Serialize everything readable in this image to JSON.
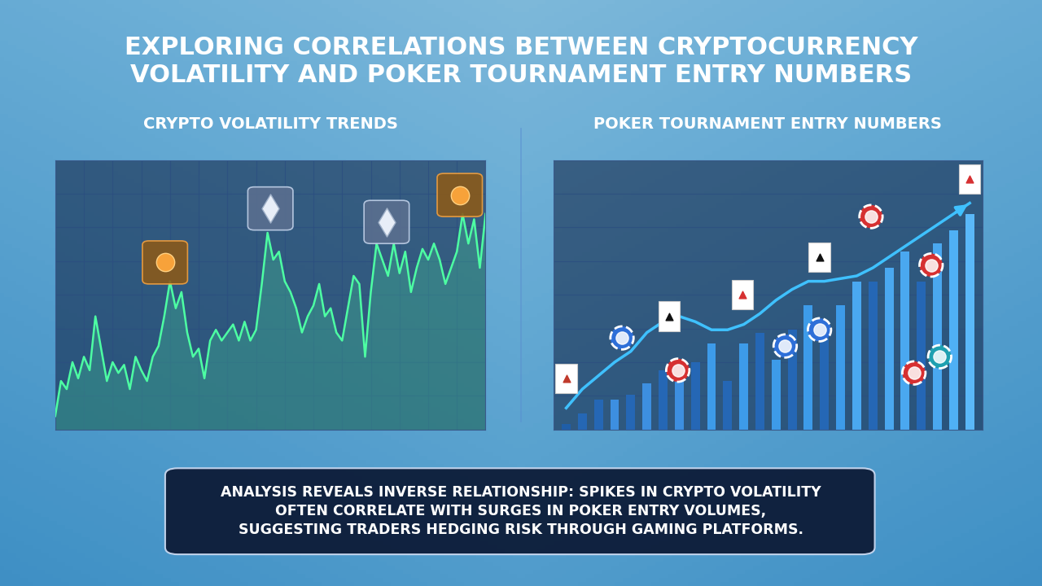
{
  "title": "EXPLORING CORRELATIONS BETWEEN CRYPTOCURRENCY\nVOLATILITY AND POKER TOURNAMENT ENTRY NUMBERS",
  "caption": "ANALYSIS REVEALS INVERSE RELATIONSHIP: SPIKES IN CRYPTO VOLATILITY\nOFTEN CORRELATE WITH SURGES IN POKER ENTRY VOLUMES,\nSUGGESTING TRADERS HEDGING RISK THROUGH GAMING PLATFORMS.",
  "chart_data": [
    {
      "type": "line",
      "title": "CRYPTO VOLATILITY TRENDS",
      "x": [
        0,
        1,
        2,
        3,
        4,
        5,
        6,
        7,
        8,
        9,
        10,
        11,
        12,
        13,
        14,
        15,
        16,
        17,
        18,
        19,
        20,
        21,
        22,
        23,
        24,
        25,
        26,
        27,
        28,
        29,
        30,
        31,
        32,
        33,
        34,
        35,
        36,
        37,
        38,
        39,
        40,
        41,
        42,
        43,
        44,
        45,
        46,
        47,
        48,
        49,
        50,
        51,
        52,
        53,
        54,
        55,
        56,
        57,
        58,
        59,
        60,
        61,
        62,
        63,
        64,
        65,
        66,
        67,
        68,
        69,
        70,
        71,
        72,
        73,
        74,
        75
      ],
      "values": [
        5,
        18,
        15,
        25,
        19,
        27,
        22,
        42,
        30,
        18,
        25,
        21,
        24,
        15,
        27,
        22,
        18,
        27,
        31,
        42,
        55,
        45,
        51,
        36,
        27,
        30,
        19,
        33,
        37,
        33,
        36,
        39,
        33,
        40,
        33,
        37,
        54,
        73,
        63,
        66,
        55,
        51,
        45,
        36,
        42,
        46,
        54,
        42,
        45,
        36,
        33,
        45,
        57,
        54,
        27,
        51,
        69,
        63,
        57,
        69,
        58,
        66,
        51,
        60,
        67,
        63,
        69,
        63,
        54,
        60,
        66,
        80,
        69,
        78,
        60,
        80
      ],
      "color": "#4dffa3",
      "xlim": [
        0,
        75
      ],
      "xticks": [
        0,
        5,
        10,
        15,
        20,
        25,
        30,
        35,
        40,
        45,
        50,
        55,
        60,
        65,
        70,
        75
      ],
      "ylim": [
        0,
        100
      ],
      "yticks": [
        0,
        12.5,
        25,
        37.5,
        50,
        62.5,
        75,
        87.5,
        100
      ],
      "grid": true,
      "tick_labels": false
    },
    {
      "type": "bar",
      "title": "POKER TOURNAMENT ENTRY NUMBERS",
      "categories": [
        null,
        null,
        null,
        null,
        null,
        null,
        null,
        null,
        null,
        null,
        null,
        null,
        null,
        null,
        null,
        null,
        null,
        null,
        null,
        null,
        null,
        null,
        null,
        null,
        null,
        null
      ],
      "series": [
        {
          "type": "bar",
          "colors": [
            "#1f5ea8",
            "#2567b5",
            "#2567b5",
            "#3d8fe0",
            "#2567b5",
            "#3d8fe0",
            "#2567b5",
            "#3d8fe0",
            "#2567b5",
            "#3d9be9",
            "#2567b5",
            "#3d9be9",
            "#2567b5",
            "#3d9be9",
            "#2567b5",
            "#3d9be9",
            "#2567b5",
            "#3d9be9",
            "#4aa8f0",
            "#2567b5",
            "#4aa8f0",
            "#4aa8f0",
            "#2567b5",
            "#4aa8f0",
            "#4fb0f5",
            "#5ab8f8"
          ],
          "values": [
            2,
            6,
            11,
            11,
            13,
            17,
            22,
            22,
            25,
            32,
            18,
            32,
            36,
            26,
            37,
            46,
            38,
            46,
            55,
            55,
            60,
            66,
            55,
            69,
            74,
            80
          ]
        },
        {
          "type": "line",
          "color": "#3fc1ff",
          "values": [
            8,
            15,
            20,
            25,
            29,
            36,
            40,
            42,
            40,
            37,
            37,
            39,
            43,
            48,
            52,
            55,
            55,
            56,
            57,
            60,
            64,
            68,
            72,
            76,
            80,
            84
          ]
        }
      ],
      "ylim": [
        0,
        100
      ],
      "yticks": [
        0,
        12.5,
        25,
        37.5,
        50,
        62.5,
        75,
        87.5,
        100
      ],
      "grid": true,
      "tick_labels": false
    }
  ]
}
